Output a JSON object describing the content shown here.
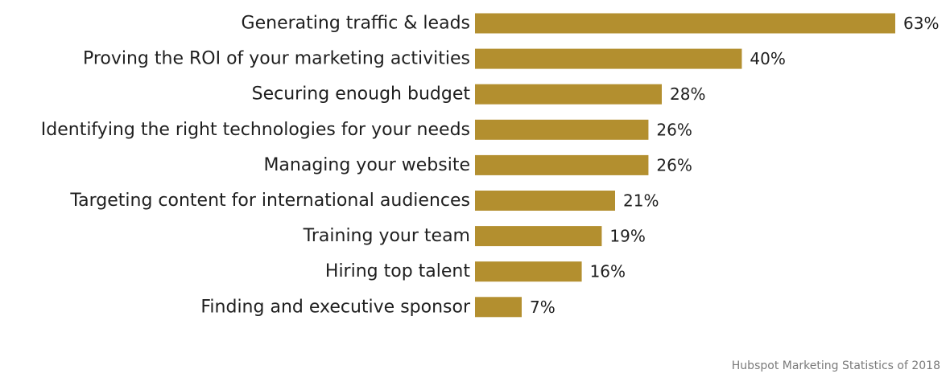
{
  "chart_data": {
    "type": "bar",
    "orientation": "horizontal",
    "categories": [
      "Generating traffic & leads",
      "Proving the ROI of your marketing activities",
      "Securing enough budget",
      "Identifying the right technologies for your needs",
      "Managing your website",
      "Targeting content for international audiences",
      "Training your team",
      "Hiring top talent",
      "Finding and executive sponsor"
    ],
    "values": [
      63,
      40,
      28,
      26,
      26,
      21,
      19,
      16,
      7
    ],
    "value_labels": [
      "63%",
      "40%",
      "28%",
      "26%",
      "26%",
      "21%",
      "19%",
      "16%",
      "7%"
    ],
    "xlim": [
      0,
      63
    ],
    "grid": false,
    "legend": "none"
  },
  "source": "Hubspot Marketing Statistics of 2018",
  "colors": {
    "bar": "#b38f2f",
    "text": "#1f1f1f",
    "source": "#7a7a7a"
  }
}
